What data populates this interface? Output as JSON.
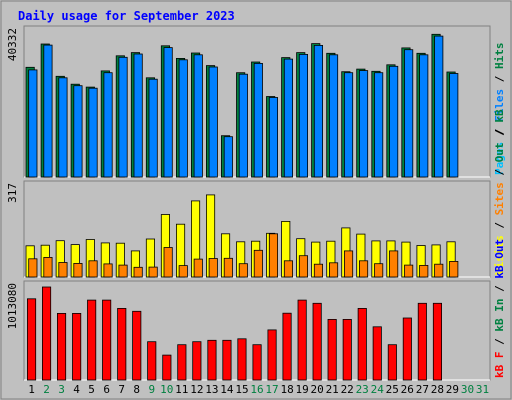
{
  "chart_data": {
    "type": "bar",
    "title": "Daily usage for September 2023",
    "days": [
      "1",
      "2",
      "3",
      "4",
      "5",
      "6",
      "7",
      "8",
      "9",
      "10",
      "11",
      "12",
      "13",
      "14",
      "15",
      "16",
      "17",
      "18",
      "19",
      "20",
      "21",
      "22",
      "23",
      "24",
      "25",
      "26",
      "27",
      "28",
      "29",
      "30",
      "31"
    ],
    "weekend_days": [
      "2",
      "3",
      "9",
      "10",
      "16",
      "17",
      "23",
      "24",
      "30",
      "31"
    ],
    "colors": {
      "background": "#c0c0c0",
      "title": "#0000ff",
      "pages": "#00c0ff",
      "files": "#0080ff",
      "hits": "#008040",
      "visits": "#ffff00",
      "sites": "#ff8000",
      "kbin": "#008040",
      "kbout": "#0000ff",
      "kbf": "#ff0000",
      "day_weekday": "#000000",
      "day_weekend": "#008040"
    },
    "panels": [
      {
        "id": "hits",
        "max_label": "40332",
        "ylim": [
          0,
          40332
        ],
        "legend": [
          "Pages",
          "Files",
          "Hits"
        ],
        "series": [
          {
            "name": "Hits",
            "values": [
              30500,
              37000,
              28000,
              25800,
              25000,
              29500,
              33700,
              34600,
              27600,
              36500,
              33000,
              34500,
              31000,
              11500,
              29000,
              32000,
              22400,
              33200,
              34600,
              37100,
              34400,
              29300,
              30000,
              29400,
              31200,
              35900,
              34400,
              39700,
              29200,
              0,
              0
            ]
          },
          {
            "name": "Files",
            "values": [
              29800,
              36700,
              27600,
              25400,
              24700,
              29000,
              33300,
              34200,
              27200,
              36000,
              32600,
              34000,
              30600,
              11200,
              28600,
              31600,
              22100,
              32800,
              34100,
              36600,
              34000,
              29000,
              29600,
              29000,
              30800,
              35400,
              34000,
              39200,
              28800,
              0,
              0
            ]
          }
        ]
      },
      {
        "id": "visits",
        "max_label": "317",
        "ylim": [
          0,
          317
        ],
        "legend": [
          "Visits",
          "Sites",
          "Out",
          "kB"
        ],
        "series": [
          {
            "name": "Visits",
            "values": [
              110,
              112,
              128,
              114,
              132,
              120,
              119,
              92,
              134,
              220,
              186,
              268,
              289,
              152,
              124,
              126,
              154,
              196,
              135,
              123,
              126,
              173,
              151,
              127,
              127,
              123,
              111,
              113,
              124,
              0,
              0
            ]
          },
          {
            "name": "Sites",
            "values": [
              64,
              69,
              51,
              48,
              57,
              46,
              42,
              34,
              35,
              104,
              40,
              63,
              65,
              66,
              47,
              94,
              152,
              57,
              75,
              45,
              50,
              92,
              57,
              47,
              92,
              42,
              41,
              45,
              55,
              0,
              0
            ]
          }
        ]
      },
      {
        "id": "kbytes",
        "max_label": "1013080",
        "ylim": [
          0,
          1013080
        ],
        "legend": [
          "kB F",
          "kB In",
          "kB Out"
        ],
        "series": [
          {
            "name": "kB F",
            "values": [
              884000,
              1013080,
              725000,
              725000,
              870000,
              870000,
              780000,
              748000,
              417000,
              271000,
              385000,
              417000,
              433000,
              433000,
              449000,
              385000,
              546000,
              728000,
              870000,
              835000,
              660000,
              660000,
              780000,
              580000,
              385000,
              675000,
              835000,
              835000,
              0,
              0,
              0
            ]
          }
        ]
      }
    ]
  }
}
